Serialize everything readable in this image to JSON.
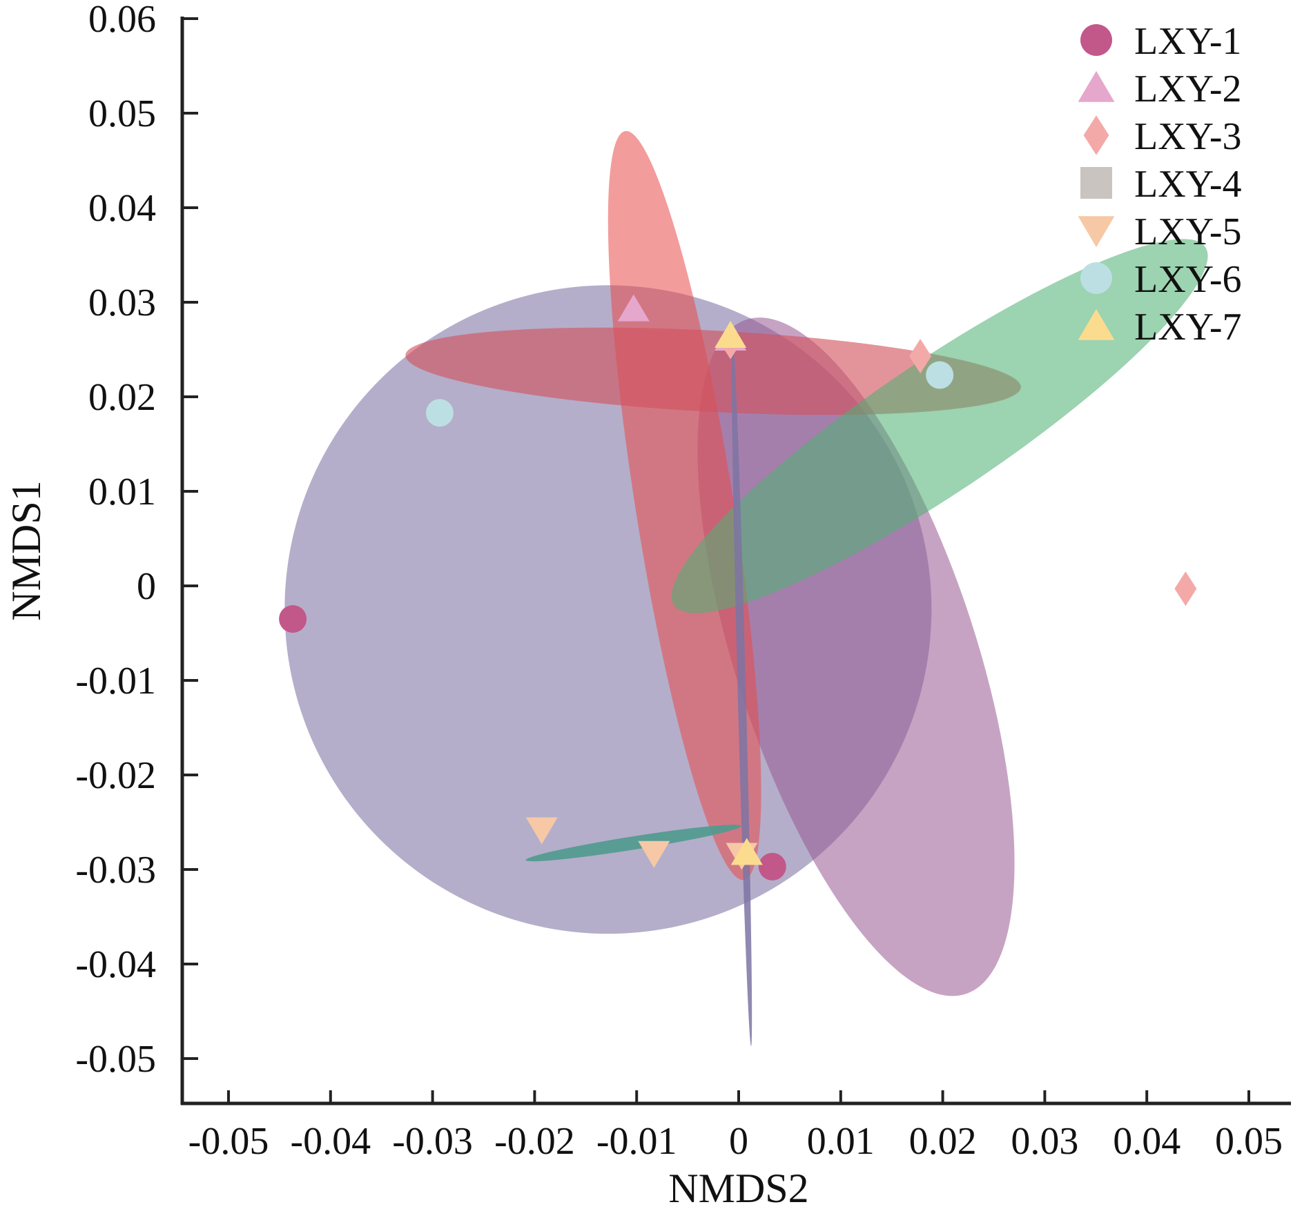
{
  "chart_data": {
    "type": "scatter",
    "title": "",
    "xlabel": "NMDS2",
    "ylabel": "NMDS1",
    "xlim": [
      -0.055,
      0.055
    ],
    "ylim": [
      -0.056,
      0.06
    ],
    "xticks": [
      -0.05,
      -0.04,
      -0.03,
      -0.02,
      -0.01,
      0,
      0.01,
      0.02,
      0.03,
      0.04,
      0.05
    ],
    "xtick_labels": [
      "-0.05",
      "-0.04",
      "-0.03",
      "-0.02",
      "-0.01",
      "0",
      "0.01",
      "0.02",
      "0.03",
      "0.04",
      "0.05"
    ],
    "yticks": [
      -0.05,
      -0.04,
      -0.03,
      -0.02,
      -0.01,
      0,
      0.01,
      0.02,
      0.03,
      0.04,
      0.05,
      0.06
    ],
    "ytick_labels": [
      "-0.05",
      "-0.04",
      "-0.03",
      "-0.02",
      "-0.01",
      "0",
      "0.01",
      "0.02",
      "0.03",
      "0.04",
      "0.05",
      "0.06"
    ],
    "grid": false,
    "legend_position": "top-right",
    "series": [
      {
        "name": "LXY-1",
        "marker": "circle",
        "color": "#c2578a",
        "points": [
          [
            -0.0437,
            -0.0035
          ],
          [
            0.0033,
            -0.0297
          ]
        ]
      },
      {
        "name": "LXY-2",
        "marker": "triangle-up",
        "color": "#e6a7cc",
        "points": [
          [
            -0.0103,
            0.0293
          ],
          [
            -0.0008,
            0.0262
          ]
        ]
      },
      {
        "name": "LXY-3",
        "marker": "diamond",
        "color": "#f4a9a9",
        "points": [
          [
            0.0178,
            0.0243
          ],
          [
            0.0438,
            -0.0003
          ],
          [
            -0.0008,
            0.0258
          ]
        ]
      },
      {
        "name": "LXY-4",
        "marker": "square",
        "color": "#c9c4c0",
        "points": []
      },
      {
        "name": "LXY-5",
        "marker": "triangle-down",
        "color": "#f6c8a5",
        "points": [
          [
            -0.0193,
            -0.0258
          ],
          [
            -0.0083,
            -0.0283
          ],
          [
            0.0003,
            -0.0285
          ]
        ]
      },
      {
        "name": "LXY-6",
        "marker": "circle",
        "color": "#bcdfe3",
        "points": [
          [
            -0.0293,
            0.0183
          ],
          [
            0.0197,
            0.0223
          ]
        ]
      },
      {
        "name": "LXY-7",
        "marker": "triangle-up",
        "color": "#fbdc8f",
        "points": [
          [
            -0.0008,
            0.0265
          ],
          [
            0.0008,
            -0.0282
          ]
        ]
      }
    ],
    "ellipses": [
      {
        "color": "#7d74a3",
        "opacity": 0.58,
        "cx": -0.0128,
        "cy": -0.0025,
        "rx": 0.0317,
        "ry": 0.0343,
        "angle": 0
      },
      {
        "color": "#9a5b94",
        "opacity": 0.56,
        "cx": 0.0115,
        "cy": -0.0075,
        "rx": 0.0118,
        "ry": 0.0375,
        "angle": 18
      },
      {
        "color": "#e94a4a",
        "opacity": 0.55,
        "cx": -0.0053,
        "cy": 0.0085,
        "rx": 0.0048,
        "ry": 0.0401,
        "angle": 9
      },
      {
        "color": "#d2525e",
        "opacity": 0.62,
        "cx": -0.0025,
        "cy": 0.0227,
        "rx": 0.0302,
        "ry": 0.0043,
        "angle": -3
      },
      {
        "color": "#4fb073",
        "opacity": 0.56,
        "cx": 0.0197,
        "cy": 0.0169,
        "rx": 0.0314,
        "ry": 0.0069,
        "angle": 34
      },
      {
        "color": "#4f9a8e",
        "opacity": 0.9,
        "cx": -0.0103,
        "cy": -0.0272,
        "rx": 0.0107,
        "ry": 0.0007,
        "angle": 9
      },
      {
        "color": "#7d74a3",
        "opacity": 0.85,
        "cx": 0.0003,
        "cy": -0.011,
        "rx": 0.0004,
        "ry": 0.0377,
        "angle": 1.5
      }
    ]
  }
}
